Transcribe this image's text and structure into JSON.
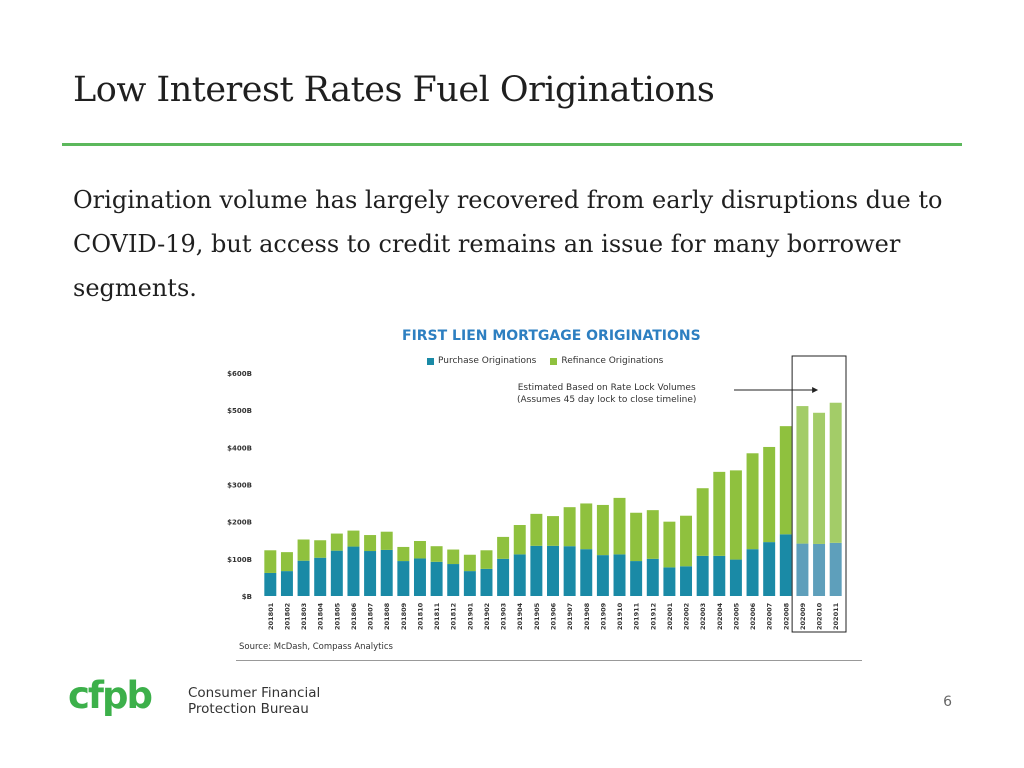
{
  "slide": {
    "title": "Low Interest Rates Fuel Originations",
    "body": "Origination volume has largely recovered from early disruptions due to COVID-19, but access to credit remains an issue for many borrower segments.",
    "page_number": "6"
  },
  "logo": {
    "mark": "cfpb",
    "line1": "Consumer Financial",
    "line2": "Protection Bureau"
  },
  "colors": {
    "purchase": "#1a8aa6",
    "refinance": "#8fc13e",
    "purchase_estimated": "#5e9fbb",
    "refinance_estimated": "#a3cc68",
    "title_rule": "#5cb85c",
    "chart_title": "#2d7fc1"
  },
  "chart_data": {
    "type": "bar",
    "stacked": true,
    "title": "FIRST LIEN MORTGAGE ORIGINATIONS",
    "source": "Source: McDash, Compass Analytics",
    "annotation_line1": "Estimated Based on Rate Lock Volumes",
    "annotation_line2": "(Assumes 45 day lock to close timeline)",
    "legend": [
      "Purchase Originations",
      "Refinance Originations"
    ],
    "y_ticks": [
      "$B",
      "$100B",
      "$200B",
      "$300B",
      "$400B",
      "$500B",
      "$600B"
    ],
    "ylim": [
      0,
      600
    ],
    "categories": [
      "201801",
      "201802",
      "201803",
      "201804",
      "201805",
      "201806",
      "201807",
      "201808",
      "201809",
      "201810",
      "201811",
      "201812",
      "201901",
      "201902",
      "201903",
      "201904",
      "201905",
      "201906",
      "201907",
      "201908",
      "201909",
      "201910",
      "201911",
      "201912",
      "202001",
      "202002",
      "202003",
      "202004",
      "202005",
      "202006",
      "202007",
      "202008",
      "202009",
      "202010",
      "202011"
    ],
    "estimated_categories": [
      "202009",
      "202010",
      "202011"
    ],
    "series": [
      {
        "name": "Purchase Originations",
        "values": [
          62,
          67,
          95,
          103,
          122,
          133,
          121,
          124,
          94,
          101,
          92,
          86,
          67,
          73,
          100,
          112,
          135,
          135,
          134,
          126,
          110,
          112,
          94,
          100,
          77,
          80,
          108,
          108,
          98,
          126,
          145,
          166,
          141,
          140,
          143
        ]
      },
      {
        "name": "Refinance Originations",
        "values": [
          61,
          51,
          57,
          47,
          46,
          43,
          43,
          49,
          38,
          47,
          42,
          39,
          44,
          50,
          59,
          79,
          86,
          80,
          105,
          123,
          135,
          152,
          130,
          131,
          123,
          136,
          182,
          226,
          240,
          258,
          256,
          291,
          370,
          353,
          377
        ]
      }
    ]
  }
}
